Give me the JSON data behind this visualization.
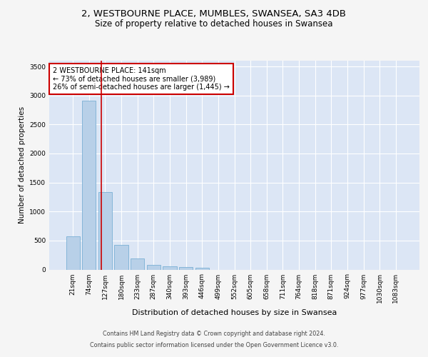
{
  "title_line1": "2, WESTBOURNE PLACE, MUMBLES, SWANSEA, SA3 4DB",
  "title_line2": "Size of property relative to detached houses in Swansea",
  "xlabel": "Distribution of detached houses by size in Swansea",
  "ylabel": "Number of detached properties",
  "bin_labels": [
    "21sqm",
    "74sqm",
    "127sqm",
    "180sqm",
    "233sqm",
    "287sqm",
    "340sqm",
    "393sqm",
    "446sqm",
    "499sqm",
    "552sqm",
    "605sqm",
    "658sqm",
    "711sqm",
    "764sqm",
    "818sqm",
    "871sqm",
    "924sqm",
    "977sqm",
    "1030sqm",
    "1083sqm"
  ],
  "bin_values": [
    570,
    2910,
    1330,
    420,
    185,
    80,
    50,
    45,
    35,
    0,
    0,
    0,
    0,
    0,
    0,
    0,
    0,
    0,
    0,
    0,
    0
  ],
  "bar_color": "#b8d0e8",
  "bar_edge_color": "#7aafd4",
  "property_line_x": 1.75,
  "annotation_title": "2 WESTBOURNE PLACE: 141sqm",
  "annotation_line2": "← 73% of detached houses are smaller (3,989)",
  "annotation_line3": "26% of semi-detached houses are larger (1,445) →",
  "annotation_box_color": "#ffffff",
  "annotation_box_edge": "#cc0000",
  "red_line_color": "#cc0000",
  "ylim": [
    0,
    3600
  ],
  "yticks": [
    0,
    500,
    1000,
    1500,
    2000,
    2500,
    3000,
    3500
  ],
  "background_color": "#dce6f5",
  "fig_background": "#f5f5f5",
  "footer_line1": "Contains HM Land Registry data © Crown copyright and database right 2024.",
  "footer_line2": "Contains public sector information licensed under the Open Government Licence v3.0.",
  "grid_color": "#ffffff",
  "title_fontsize": 9.5,
  "subtitle_fontsize": 8.5,
  "xlabel_fontsize": 8,
  "ylabel_fontsize": 7.5,
  "tick_fontsize": 6.5,
  "annotation_fontsize": 7,
  "footer_fontsize": 5.8
}
